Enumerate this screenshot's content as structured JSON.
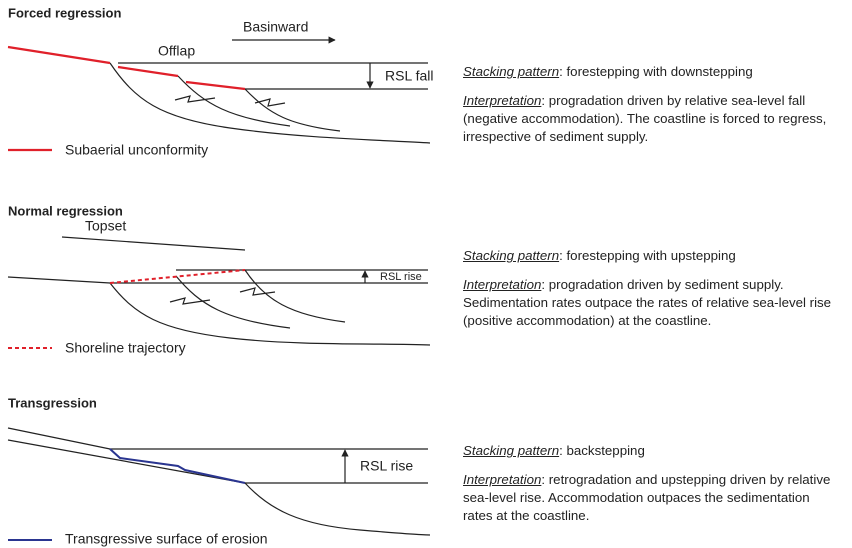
{
  "panels": [
    {
      "title": "Forced regression",
      "labels": {
        "direction": "Basinward",
        "top": "Offlap",
        "rsl": "RSL fall"
      },
      "legend": "Subaerial unconformity",
      "stacking_label": "Stacking pattern",
      "stacking": ": forestepping with downstepping",
      "interpretation_label": "Interpretation",
      "interpretation": ": progradation driven by relative sea-level fall (negative accommodation). The coastline is forced to regress, irrespective of sediment supply."
    },
    {
      "title": "Normal regression",
      "labels": {
        "top": "Topset",
        "rsl": "RSL rise"
      },
      "legend": "Shoreline trajectory",
      "stacking_label": "Stacking pattern",
      "stacking": ": forestepping with upstepping",
      "interpretation_label": "Interpretation",
      "interpretation": ": progradation driven by sediment supply. Sedimentation rates outpace the rates of relative sea-level rise (positive accommodation) at the coastline."
    },
    {
      "title": "Transgression",
      "labels": {
        "rsl": "RSL rise"
      },
      "legend": "Transgressive surface of erosion",
      "stacking_label": "Stacking pattern",
      "stacking": ": backstepping",
      "interpretation_label": "Interpretation",
      "interpretation": ": retrogradation and upstepping driven by relative sea-level rise. Accommodation outpaces the sedimentation rates at the coastline."
    }
  ]
}
